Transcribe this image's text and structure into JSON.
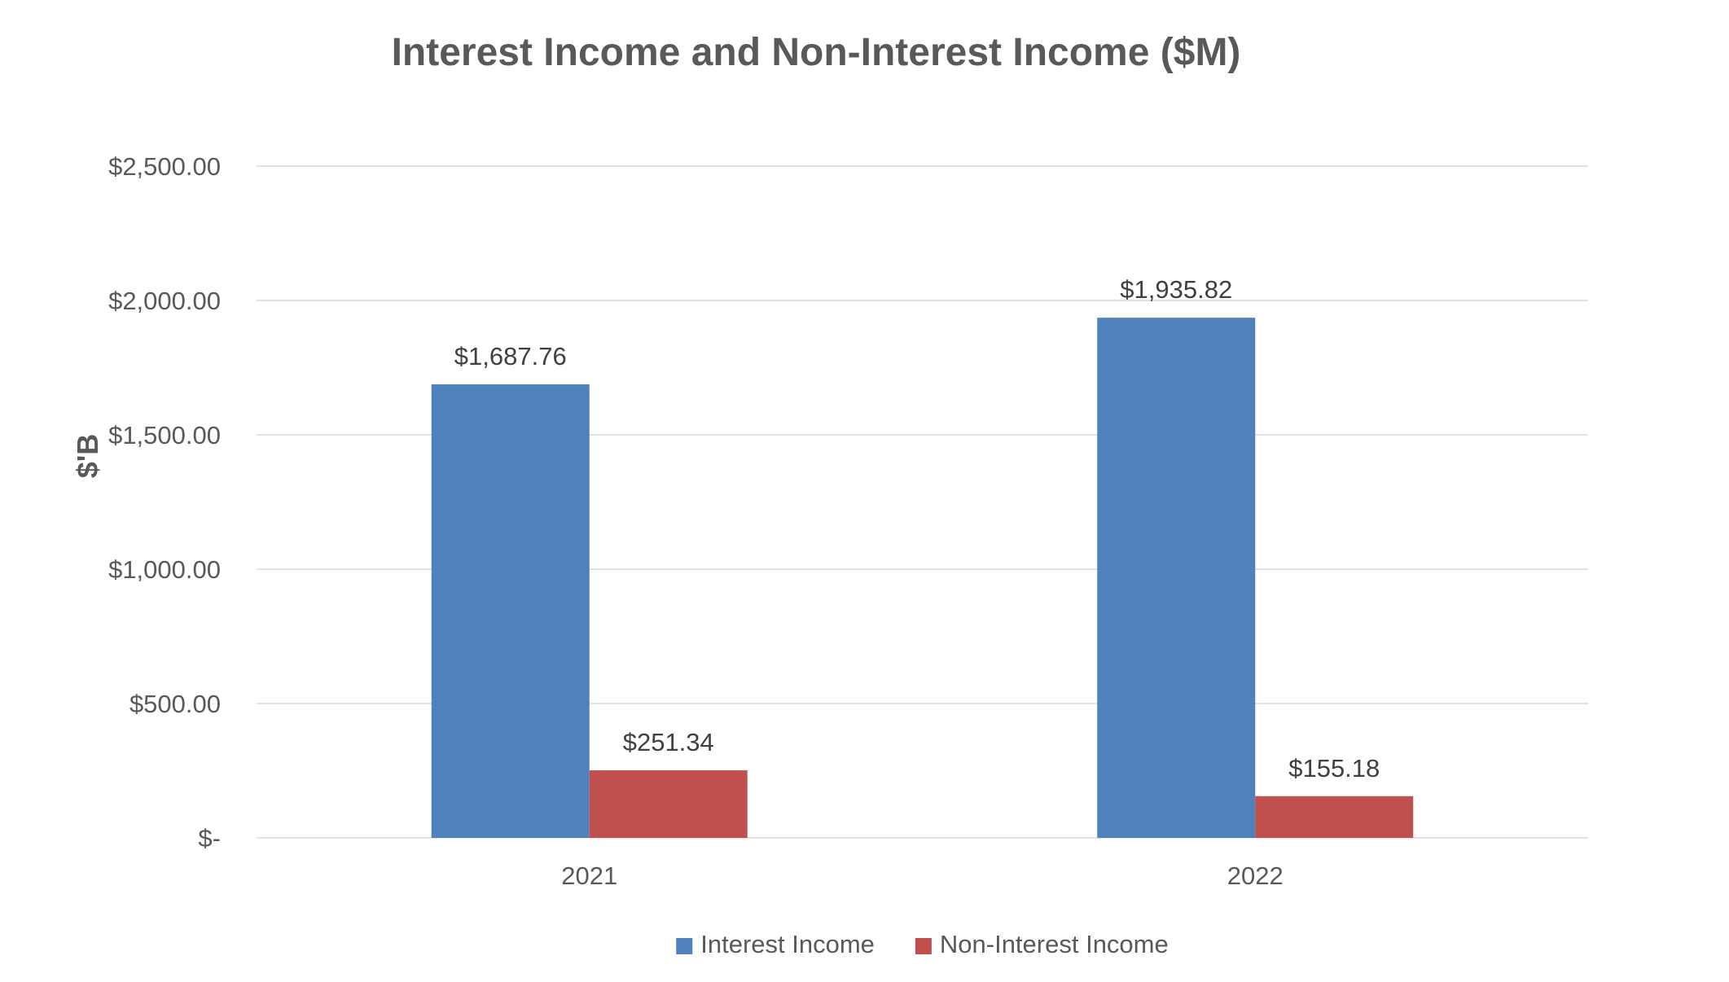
{
  "chart_data": {
    "type": "bar",
    "title": "Interest Income and Non-Interest Income ($M)",
    "xlabel": "",
    "ylabel": "$'B",
    "categories": [
      "2021",
      "2022"
    ],
    "series": [
      {
        "name": "Interest Income",
        "color": "#4F81BD",
        "values": [
          1687.76,
          1935.82
        ],
        "labels": [
          "$1,687.76",
          "$1,935.82"
        ]
      },
      {
        "name": "Non-Interest Income",
        "color": "#C0504D",
        "values": [
          251.34,
          155.18
        ],
        "labels": [
          "$251.34",
          "$155.18"
        ]
      }
    ],
    "ylim": [
      0,
      2500
    ],
    "yticks": [
      0,
      500,
      1000,
      1500,
      2000,
      2500
    ],
    "ytick_labels": [
      "$-",
      "$500.00",
      "$1,000.00",
      "$1,500.00",
      "$2,000.00",
      "$2,500.00"
    ],
    "grid": true,
    "legend_position": "bottom"
  }
}
